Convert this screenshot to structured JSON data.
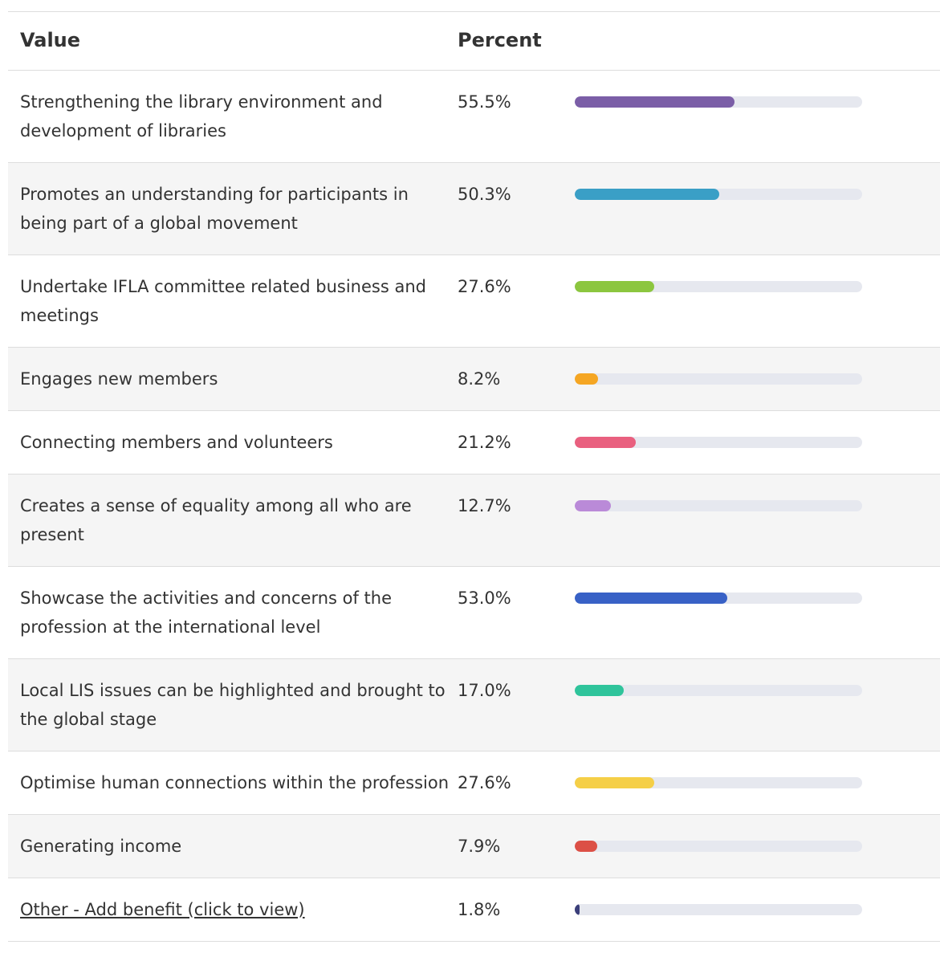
{
  "table": {
    "headers": [
      "Value",
      "Percent"
    ],
    "bar_range": [
      0,
      100
    ],
    "rows": [
      {
        "value": "Strengthening the library environment and development of libraries",
        "percent": 55.5,
        "percent_label": "55.5%",
        "color": "#7b5ea7"
      },
      {
        "value": "Promotes an understanding for participants in being part of a global movement",
        "percent": 50.3,
        "percent_label": "50.3%",
        "color": "#3a9fc6"
      },
      {
        "value": "Undertake IFLA committee related business and meetings",
        "percent": 27.6,
        "percent_label": "27.6%",
        "color": "#8cc63f"
      },
      {
        "value": "Engages new members",
        "percent": 8.2,
        "percent_label": "8.2%",
        "color": "#f5a623"
      },
      {
        "value": "Connecting members and volunteers",
        "percent": 21.2,
        "percent_label": "21.2%",
        "color": "#e9607f"
      },
      {
        "value": "Creates a sense of equality among all who are present",
        "percent": 12.7,
        "percent_label": "12.7%",
        "color": "#ba8ad8"
      },
      {
        "value": "Showcase the activities and concerns of the profession at the international level",
        "percent": 53.0,
        "percent_label": "53.0%",
        "color": "#3861c6"
      },
      {
        "value": "Local LIS issues can be highlighted and brought to the global stage",
        "percent": 17.0,
        "percent_label": "17.0%",
        "color": "#2fc49b"
      },
      {
        "value": "Optimise human connections within the profession",
        "percent": 27.6,
        "percent_label": "27.6%",
        "color": "#f5cf47"
      },
      {
        "value": "Generating income",
        "percent": 7.9,
        "percent_label": "7.9%",
        "color": "#dc5046"
      },
      {
        "value": "Other - Add benefit (click to view)",
        "percent": 1.8,
        "percent_label": "1.8%",
        "color": "#3b3f7a",
        "link": true
      }
    ]
  }
}
